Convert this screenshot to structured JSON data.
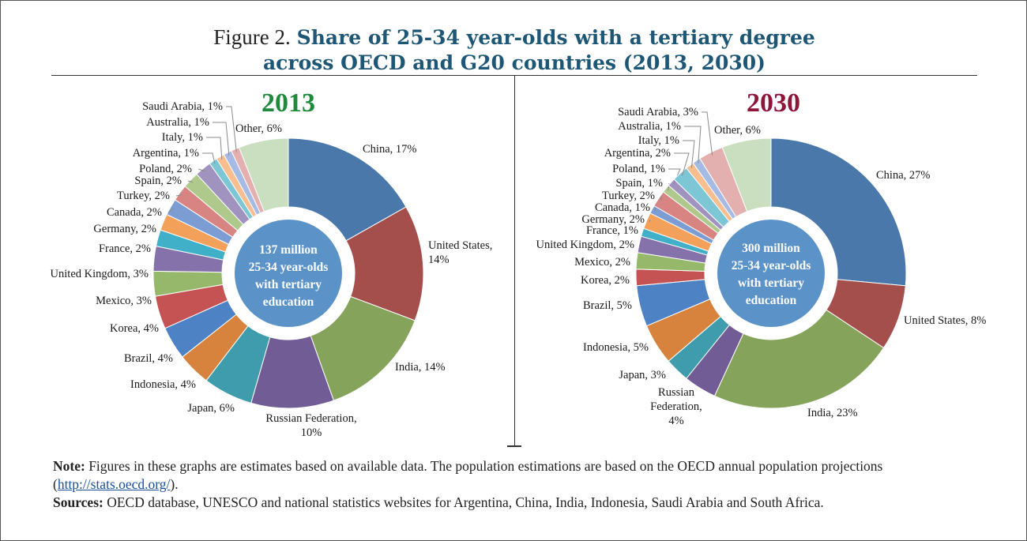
{
  "title": {
    "lead": "Figure 2.",
    "main_line1": "Share of 25-34 year-olds with a tertiary degree",
    "main_line2": "across OECD and G20 countries (2013, 2030)"
  },
  "chart_data": [
    {
      "type": "pie",
      "title": "2013",
      "title_color": "#1f8a3b",
      "center_label": [
        "137 million",
        "25-34 year-olds",
        "with tertiary",
        "education"
      ],
      "slices": [
        {
          "label": "China, 17%",
          "value": 17,
          "color": "#4a78aa"
        },
        {
          "label": "United States, 14%",
          "value": 14,
          "color": "#a54f4c"
        },
        {
          "label": "India, 14%",
          "value": 14,
          "color": "#86a35b"
        },
        {
          "label": "Russian Federation, 10%",
          "value": 10,
          "color": "#715c96"
        },
        {
          "label": "Japan, 6%",
          "value": 6,
          "color": "#3e9cac"
        },
        {
          "label": "Indonesia, 4%",
          "value": 4,
          "color": "#d8833d"
        },
        {
          "label": "Brazil, 4%",
          "value": 4,
          "color": "#4d83c4"
        },
        {
          "label": "Korea, 4%",
          "value": 4,
          "color": "#c65353"
        },
        {
          "label": "Mexico, 3%",
          "value": 3,
          "color": "#95b86a"
        },
        {
          "label": "United Kingdom, 3%",
          "value": 3,
          "color": "#8672ab"
        },
        {
          "label": "France, 2%",
          "value": 2,
          "color": "#3fb0c8"
        },
        {
          "label": "Germany, 2%",
          "value": 2,
          "color": "#f3a05b"
        },
        {
          "label": "Canada, 2%",
          "value": 2,
          "color": "#7c9dd3"
        },
        {
          "label": "Turkey, 2%",
          "value": 2,
          "color": "#d78482"
        },
        {
          "label": "Spain, 2%",
          "value": 2,
          "color": "#aec98b"
        },
        {
          "label": "Poland, 2%",
          "value": 2,
          "color": "#a193c0"
        },
        {
          "label": "Argentina, 1%",
          "value": 1,
          "color": "#7cc6d6"
        },
        {
          "label": "Italy, 1%",
          "value": 1,
          "color": "#f8be90"
        },
        {
          "label": "Australia, 1%",
          "value": 1,
          "color": "#a6bbe3"
        },
        {
          "label": "Saudi Arabia, 1%",
          "value": 1,
          "color": "#e3b0af"
        },
        {
          "label": "Other, 6%",
          "value": 6,
          "color": "#cadfbf"
        }
      ]
    },
    {
      "type": "pie",
      "title": "2030",
      "title_color": "#8e1439",
      "center_label": [
        "300 million",
        "25-34 year-olds",
        "with tertiary",
        "education"
      ],
      "slices": [
        {
          "label": "China, 27%",
          "value": 27,
          "color": "#4a78aa"
        },
        {
          "label": "United States, 8%",
          "value": 8,
          "color": "#a54f4c"
        },
        {
          "label": "India, 23%",
          "value": 23,
          "color": "#86a35b"
        },
        {
          "label": "Russian Federation, 4%",
          "value": 4,
          "color": "#715c96"
        },
        {
          "label": "Japan, 3%",
          "value": 3,
          "color": "#3e9cac"
        },
        {
          "label": "Indonesia, 5%",
          "value": 5,
          "color": "#d8833d"
        },
        {
          "label": "Brazil, 5%",
          "value": 5,
          "color": "#4d83c4"
        },
        {
          "label": "Korea, 2%",
          "value": 2,
          "color": "#c65353"
        },
        {
          "label": "Mexico, 2%",
          "value": 2,
          "color": "#95b86a"
        },
        {
          "label": "United Kingdom, 2%",
          "value": 2,
          "color": "#8672ab"
        },
        {
          "label": "France, 1%",
          "value": 1,
          "color": "#3fb0c8"
        },
        {
          "label": "Germany, 2%",
          "value": 2,
          "color": "#f3a05b"
        },
        {
          "label": "Canada, 1%",
          "value": 1,
          "color": "#7c9dd3"
        },
        {
          "label": "Turkey, 2%",
          "value": 2,
          "color": "#d78482"
        },
        {
          "label": "Spain, 1%",
          "value": 1,
          "color": "#aec98b"
        },
        {
          "label": "Poland, 1%",
          "value": 1,
          "color": "#a193c0"
        },
        {
          "label": "Argentina, 2%",
          "value": 2,
          "color": "#7cc6d6"
        },
        {
          "label": "Italy, 1%",
          "value": 1,
          "color": "#f8be90"
        },
        {
          "label": "Australia, 1%",
          "value": 1,
          "color": "#a6bbe3"
        },
        {
          "label": "Saudi Arabia, 3%",
          "value": 3,
          "color": "#e3b0af"
        },
        {
          "label": "Other, 6%",
          "value": 6,
          "color": "#cadfbf"
        }
      ]
    }
  ],
  "notes": {
    "note_label": "Note:",
    "note_text": "Figures in these graphs are estimates based on available data. The population estimations are based on the OECD annual population projections",
    "note_link_open": "(",
    "note_link": "http://stats.oecd.org/",
    "note_link_close": ").",
    "sources_label": "Sources:",
    "sources_text": "OECD database, UNESCO and national statistics websites for Argentina, China, India, Indonesia, Saudi Arabia and South Africa."
  }
}
